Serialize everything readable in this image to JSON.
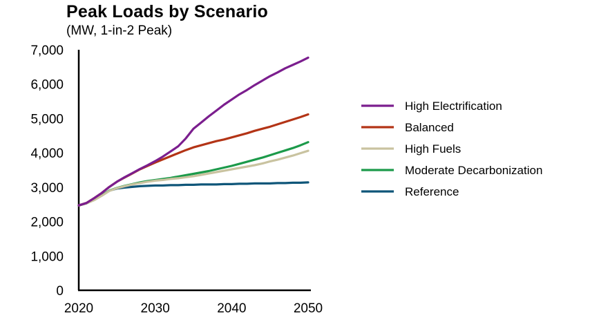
{
  "chart_data": {
    "type": "line",
    "title": "Peak Loads by Scenario",
    "subtitle": "(MW, 1-in-2 Peak)",
    "xlabel": "",
    "ylabel": "",
    "xlim": [
      2020,
      2050
    ],
    "ylim": [
      0,
      7000
    ],
    "xticks": [
      2020,
      2030,
      2040,
      2050
    ],
    "yticks": [
      0,
      1000,
      2000,
      3000,
      4000,
      5000,
      6000,
      7000
    ],
    "ytick_labels": [
      "0",
      "1,000",
      "2,000",
      "3,000",
      "4,000",
      "5,000",
      "6,000",
      "7,000"
    ],
    "grid": false,
    "legend_position": "right",
    "x": [
      2020,
      2021,
      2022,
      2023,
      2024,
      2025,
      2026,
      2027,
      2028,
      2029,
      2030,
      2031,
      2032,
      2033,
      2034,
      2035,
      2036,
      2037,
      2038,
      2039,
      2040,
      2041,
      2042,
      2043,
      2044,
      2045,
      2046,
      2047,
      2048,
      2049,
      2050
    ],
    "series": [
      {
        "name": "High Electrification",
        "color": "#7B1E8E",
        "values": [
          2470,
          2540,
          2680,
          2830,
          3010,
          3160,
          3290,
          3410,
          3530,
          3640,
          3760,
          3890,
          4040,
          4190,
          4420,
          4700,
          4880,
          5060,
          5230,
          5400,
          5550,
          5700,
          5830,
          5970,
          6100,
          6230,
          6340,
          6460,
          6560,
          6660,
          6770
        ]
      },
      {
        "name": "Balanced",
        "color": "#B33416",
        "values": [
          2470,
          2540,
          2680,
          2830,
          3010,
          3160,
          3280,
          3400,
          3520,
          3620,
          3720,
          3810,
          3900,
          3990,
          4080,
          4160,
          4220,
          4280,
          4340,
          4390,
          4450,
          4510,
          4570,
          4640,
          4700,
          4760,
          4830,
          4900,
          4970,
          5040,
          5120
        ]
      },
      {
        "name": "High Fuels",
        "color": "#C9C3A0",
        "values": [
          2470,
          2530,
          2620,
          2750,
          2890,
          2970,
          3030,
          3080,
          3120,
          3160,
          3190,
          3210,
          3240,
          3260,
          3290,
          3320,
          3360,
          3400,
          3440,
          3480,
          3520,
          3560,
          3600,
          3640,
          3690,
          3750,
          3800,
          3860,
          3920,
          3990,
          4060
        ]
      },
      {
        "name": "Moderate Decarbonization",
        "color": "#1C9A4A",
        "values": [
          2470,
          2530,
          2630,
          2760,
          2900,
          2980,
          3040,
          3090,
          3140,
          3180,
          3210,
          3240,
          3270,
          3310,
          3350,
          3390,
          3430,
          3470,
          3520,
          3570,
          3620,
          3680,
          3740,
          3800,
          3860,
          3930,
          4000,
          4070,
          4140,
          4220,
          4310
        ]
      },
      {
        "name": "Reference",
        "color": "#0F5679",
        "values": [
          2470,
          2530,
          2640,
          2760,
          2900,
          2960,
          2990,
          3010,
          3030,
          3040,
          3050,
          3050,
          3060,
          3060,
          3070,
          3070,
          3080,
          3080,
          3080,
          3090,
          3090,
          3100,
          3100,
          3110,
          3110,
          3110,
          3120,
          3120,
          3130,
          3130,
          3140
        ]
      }
    ]
  }
}
